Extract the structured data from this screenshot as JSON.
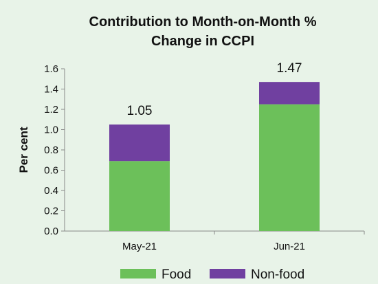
{
  "chart_data": {
    "type": "bar",
    "stacked": true,
    "title_lines": [
      "Contribution to Month-on-Month %",
      "Change in CCPI"
    ],
    "ylabel": "Per cent",
    "xlabel": "",
    "ylim": [
      0,
      1.6
    ],
    "yticks": [
      "0.0",
      "0.2",
      "0.4",
      "0.6",
      "0.8",
      "1.0",
      "1.2",
      "1.4",
      "1.6"
    ],
    "categories": [
      "May-21",
      "Jun-21"
    ],
    "series": [
      {
        "name": "Food",
        "values": [
          0.69,
          1.25
        ],
        "color": "#6cc05a"
      },
      {
        "name": "Non-food",
        "values": [
          0.36,
          0.22
        ],
        "color": "#7040a0"
      }
    ],
    "totals": [
      "1.05",
      "1.47"
    ],
    "grid": false,
    "legend_position": "bottom"
  }
}
